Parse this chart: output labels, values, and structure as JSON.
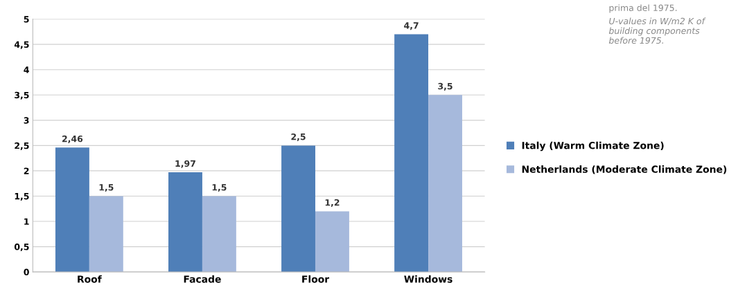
{
  "chart_data": {
    "type": "bar",
    "categories": [
      "Roof",
      "Facade",
      "Floor",
      "Windows"
    ],
    "series": [
      {
        "name": "Italy (Warm Climate Zone)",
        "color": "#4f7fb8",
        "values": [
          2.46,
          1.97,
          2.5,
          4.7
        ],
        "value_labels": [
          "2,46",
          "1,97",
          "2,5",
          "4,7"
        ]
      },
      {
        "name": "Netherlands (Moderate Climate Zone)",
        "color": "#a6b9dc",
        "values": [
          1.5,
          1.5,
          1.2,
          3.5
        ],
        "value_labels": [
          "1,5",
          "1,5",
          "1,2",
          "3,5"
        ]
      }
    ],
    "ylim": [
      0,
      5
    ],
    "yticks": [
      0,
      {
        "value": 0.5,
        "label": "0,5"
      },
      1,
      {
        "value": 1.5,
        "label": "1,5"
      },
      2,
      {
        "value": 2.5,
        "label": "2,5"
      },
      3,
      {
        "value": 3.5,
        "label": "3,5"
      },
      4,
      {
        "value": 4.5,
        "label": "4,5"
      },
      5
    ],
    "grid": "y",
    "legend": "right",
    "annotations": [
      "prima del 1975.",
      "U-values in W/m2 K of building components before 1975."
    ]
  }
}
